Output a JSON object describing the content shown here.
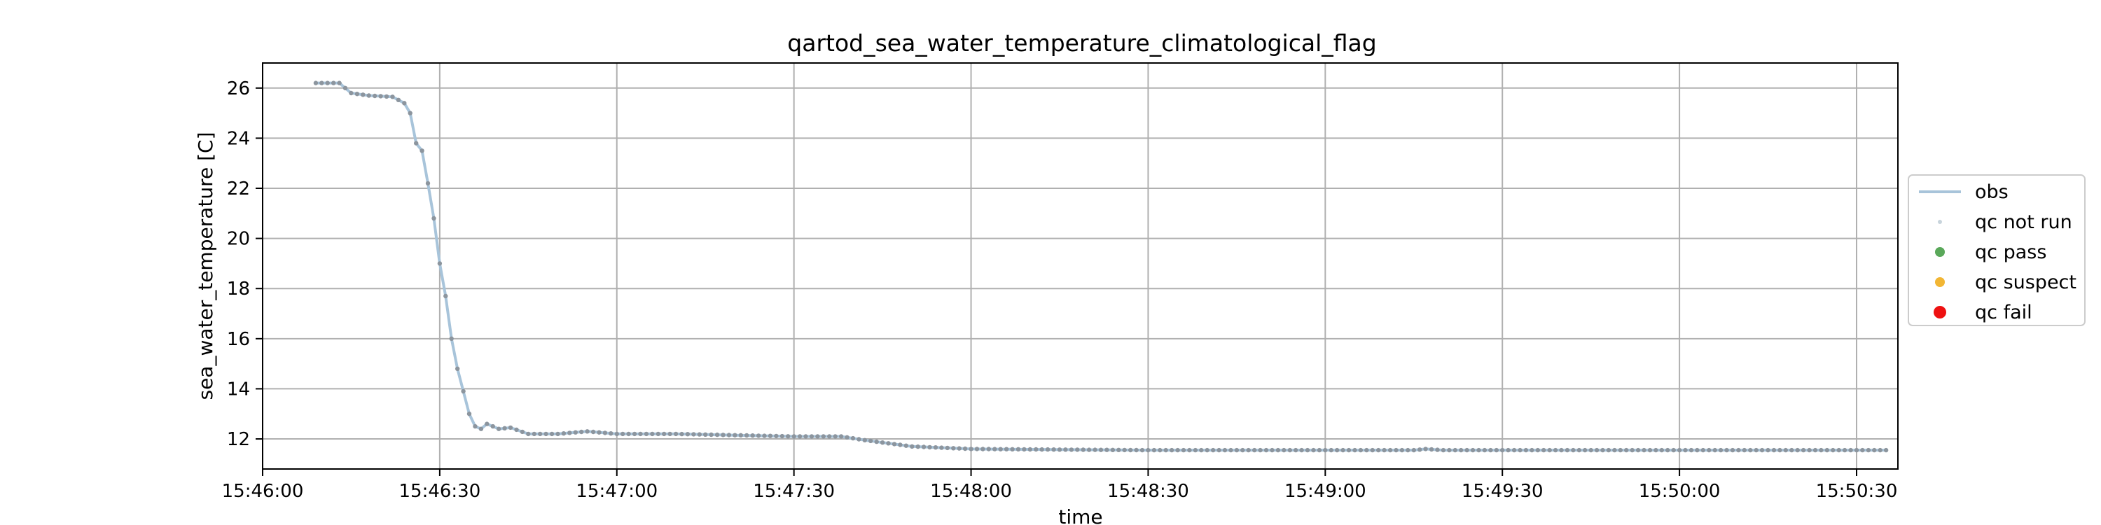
{
  "chart_data": {
    "type": "line",
    "title": "qartod_sea_water_temperature_climatological_flag",
    "xlabel": "time",
    "ylabel": "sea_water_temperature [C]",
    "x_ticks": [
      "15:46:00",
      "15:46:30",
      "15:47:00",
      "15:47:30",
      "15:48:00",
      "15:48:30",
      "15:49:00",
      "15:49:30",
      "15:50:00",
      "15:50:30"
    ],
    "x_range": [
      "15:46:00",
      "15:50:37"
    ],
    "y_ticks": [
      12,
      14,
      16,
      18,
      20,
      22,
      24,
      26
    ],
    "ylim": [
      10.8,
      27.0
    ],
    "grid": true,
    "legend_position": "outside-right",
    "legend": [
      {
        "label": "obs",
        "marker": "line",
        "color": "#a8c4da"
      },
      {
        "label": "qc not run",
        "marker": "small-dot",
        "color": "#c8d4dc"
      },
      {
        "label": "qc pass",
        "marker": "dot",
        "color": "#5aa85a"
      },
      {
        "label": "qc suspect",
        "marker": "dot",
        "color": "#f2b634"
      },
      {
        "label": "qc fail",
        "marker": "big-dot",
        "color": "#ee1111"
      }
    ],
    "series": [
      {
        "name": "obs",
        "color": "#a8c4da",
        "points": [
          [
            "15:46:09",
            26.2
          ],
          [
            "15:46:13",
            26.2
          ],
          [
            "15:46:15",
            25.8
          ],
          [
            "15:46:18",
            25.7
          ],
          [
            "15:46:22",
            25.65
          ],
          [
            "15:46:24",
            25.4
          ],
          [
            "15:46:25",
            25.0
          ],
          [
            "15:46:26",
            23.8
          ],
          [
            "15:46:27",
            23.5
          ],
          [
            "15:46:28",
            22.2
          ],
          [
            "15:46:29",
            20.8
          ],
          [
            "15:46:30",
            19.0
          ],
          [
            "15:46:31",
            17.7
          ],
          [
            "15:46:32",
            16.0
          ],
          [
            "15:46:33",
            14.8
          ],
          [
            "15:46:34",
            13.9
          ],
          [
            "15:46:35",
            13.0
          ],
          [
            "15:46:36",
            12.5
          ],
          [
            "15:46:37",
            12.4
          ],
          [
            "15:46:38",
            12.6
          ],
          [
            "15:46:40",
            12.4
          ],
          [
            "15:46:42",
            12.45
          ],
          [
            "15:46:45",
            12.2
          ],
          [
            "15:46:50",
            12.2
          ],
          [
            "15:46:55",
            12.3
          ],
          [
            "15:47:00",
            12.2
          ],
          [
            "15:47:10",
            12.2
          ],
          [
            "15:47:20",
            12.15
          ],
          [
            "15:47:30",
            12.1
          ],
          [
            "15:47:38",
            12.1
          ],
          [
            "15:47:42",
            11.95
          ],
          [
            "15:47:50",
            11.7
          ],
          [
            "15:48:00",
            11.6
          ],
          [
            "15:48:30",
            11.55
          ],
          [
            "15:49:00",
            11.55
          ],
          [
            "15:49:15",
            11.55
          ],
          [
            "15:49:17",
            11.6
          ],
          [
            "15:49:20",
            11.55
          ],
          [
            "15:50:00",
            11.55
          ],
          [
            "15:50:35",
            11.55
          ]
        ]
      }
    ]
  }
}
